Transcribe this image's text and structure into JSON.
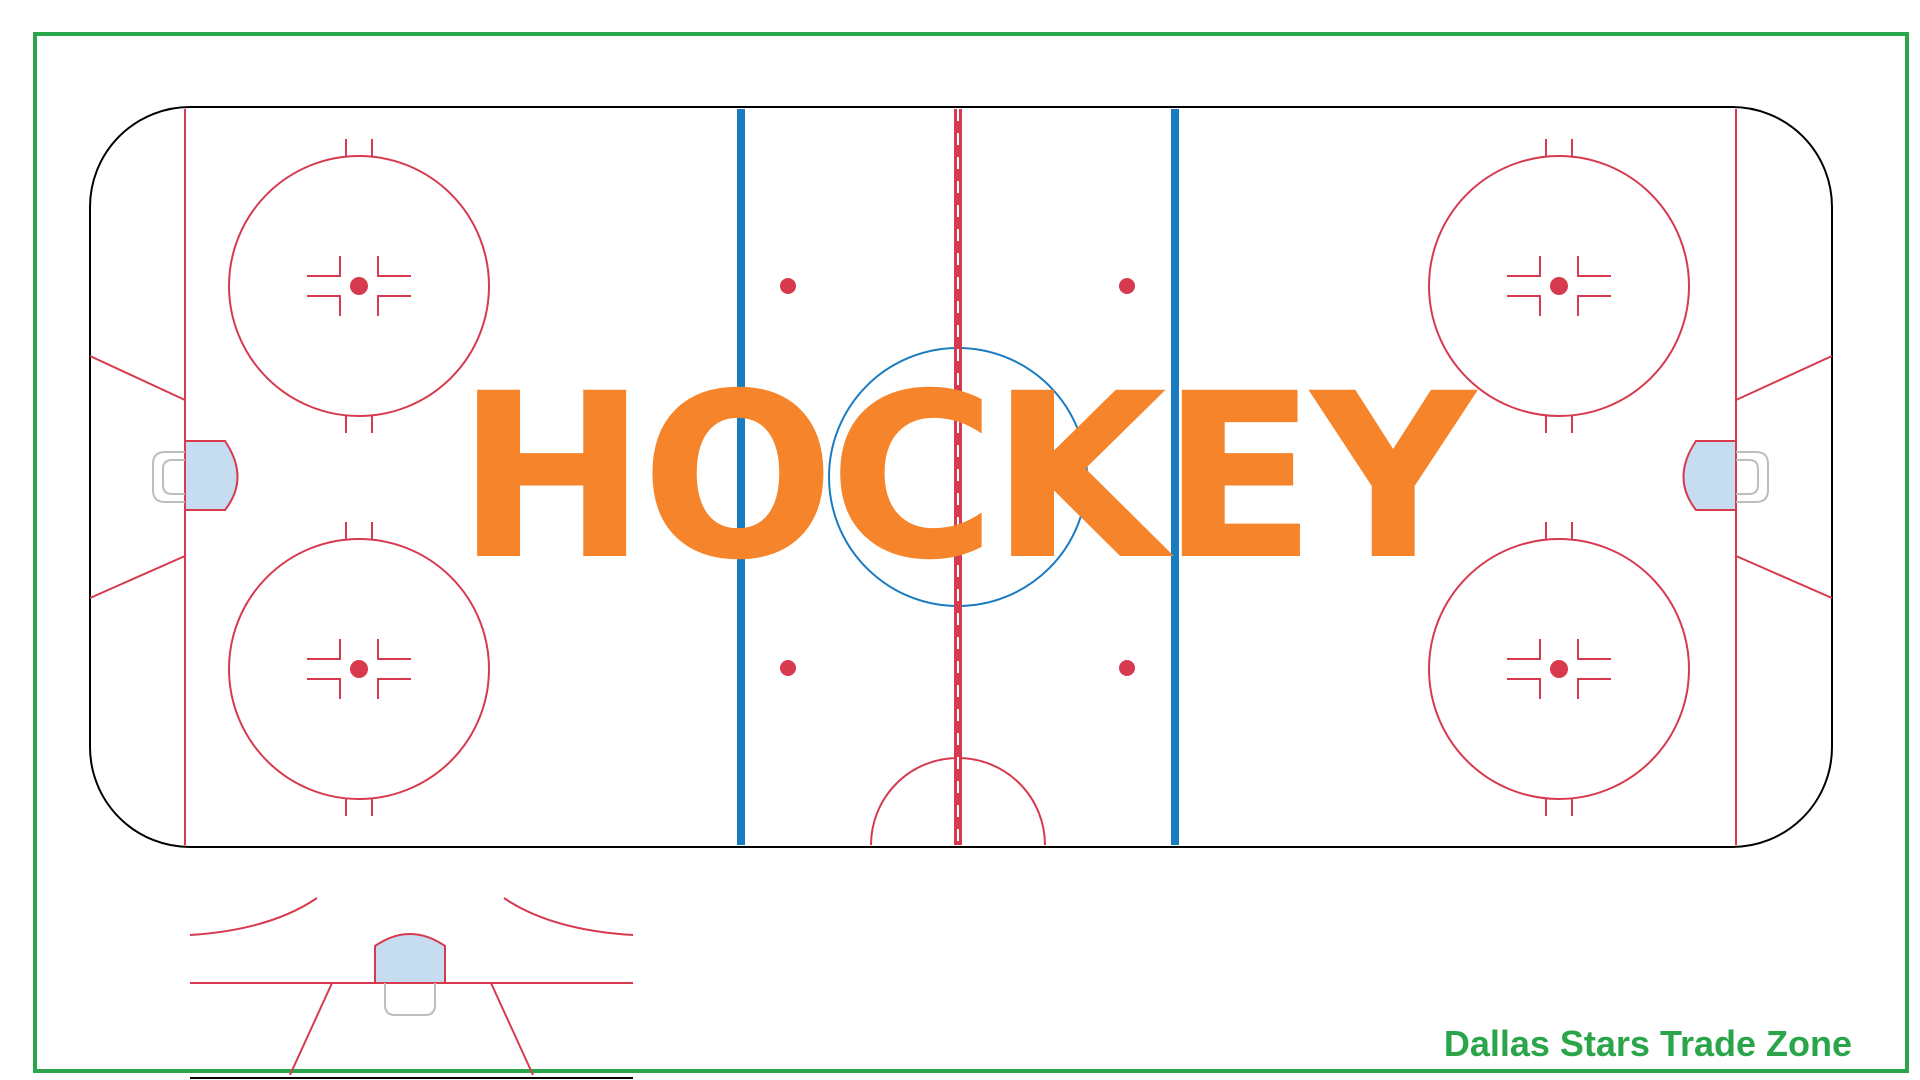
{
  "title": "HOCKEY",
  "brand": "Dallas Stars Trade Zone",
  "colors": {
    "frame": "#2aa54a",
    "title": "#f5842a",
    "red_line": "#d73a4f",
    "blue_line": "#1a7cc0",
    "crease": "#c6dcf0",
    "net": "#bdbdbd",
    "boards": "#000000"
  },
  "icons": {
    "goal_net": "goal-net-icon",
    "faceoff_dot": "faceoff-dot-icon"
  }
}
